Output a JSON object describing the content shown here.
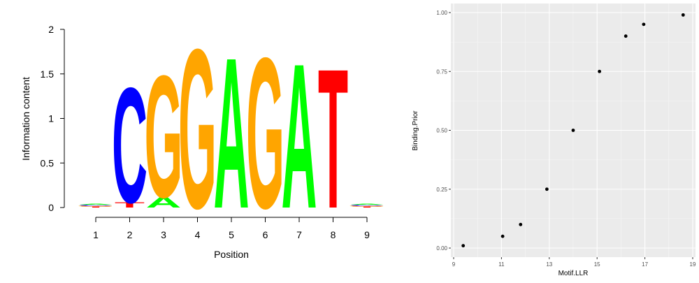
{
  "chart_data": [
    {
      "type": "sequence-logo",
      "title": "",
      "xlabel": "Position",
      "ylabel": "Information content",
      "ylim": [
        0,
        2
      ],
      "y_ticks": [
        "0",
        "0.5",
        "1",
        "1.5",
        "2"
      ],
      "x_ticks": [
        "1",
        "2",
        "3",
        "4",
        "5",
        "6",
        "7",
        "8",
        "9"
      ],
      "colors": {
        "A": "#00ff00",
        "C": "#0000ff",
        "G": "#ffa500",
        "T": "#ff0000"
      },
      "positions": [
        {
          "position": 1,
          "letters": [
            {
              "base": "T",
              "height": 0.01
            },
            {
              "base": "G",
              "height": 0.01
            },
            {
              "base": "C",
              "height": 0.01
            },
            {
              "base": "A",
              "height": 0.01
            }
          ]
        },
        {
          "position": 2,
          "letters": [
            {
              "base": "T",
              "height": 0.06
            },
            {
              "base": "C",
              "height": 1.33
            }
          ]
        },
        {
          "position": 3,
          "letters": [
            {
              "base": "A",
              "height": 0.12
            },
            {
              "base": "G",
              "height": 1.41
            }
          ]
        },
        {
          "position": 4,
          "letters": [
            {
              "base": "G",
              "height": 1.84
            }
          ]
        },
        {
          "position": 5,
          "letters": [
            {
              "base": "A",
              "height": 1.74
            }
          ]
        },
        {
          "position": 6,
          "letters": [
            {
              "base": "G",
              "height": 1.74
            }
          ]
        },
        {
          "position": 7,
          "letters": [
            {
              "base": "A",
              "height": 1.67
            }
          ]
        },
        {
          "position": 8,
          "letters": [
            {
              "base": "T",
              "height": 1.61
            }
          ]
        },
        {
          "position": 9,
          "letters": [
            {
              "base": "T",
              "height": 0.01
            },
            {
              "base": "G",
              "height": 0.01
            },
            {
              "base": "C",
              "height": 0.01
            },
            {
              "base": "A",
              "height": 0.01
            }
          ]
        }
      ]
    },
    {
      "type": "scatter",
      "title": "",
      "xlabel": "Motif.LLR",
      "ylabel": "Binding.Prior",
      "xlim": [
        9,
        19
      ],
      "ylim": [
        0,
        1
      ],
      "x_ticks": [
        "9",
        "11",
        "13",
        "15",
        "17",
        "19"
      ],
      "y_ticks": [
        "0.00",
        "0.25",
        "0.50",
        "0.75",
        "1.00"
      ],
      "grid": true,
      "points": [
        {
          "x": 9.4,
          "y": 0.01
        },
        {
          "x": 11.05,
          "y": 0.05
        },
        {
          "x": 11.8,
          "y": 0.1
        },
        {
          "x": 12.9,
          "y": 0.25
        },
        {
          "x": 14.0,
          "y": 0.5
        },
        {
          "x": 15.1,
          "y": 0.75
        },
        {
          "x": 16.2,
          "y": 0.9
        },
        {
          "x": 16.95,
          "y": 0.95
        },
        {
          "x": 18.6,
          "y": 0.99
        }
      ]
    }
  ]
}
